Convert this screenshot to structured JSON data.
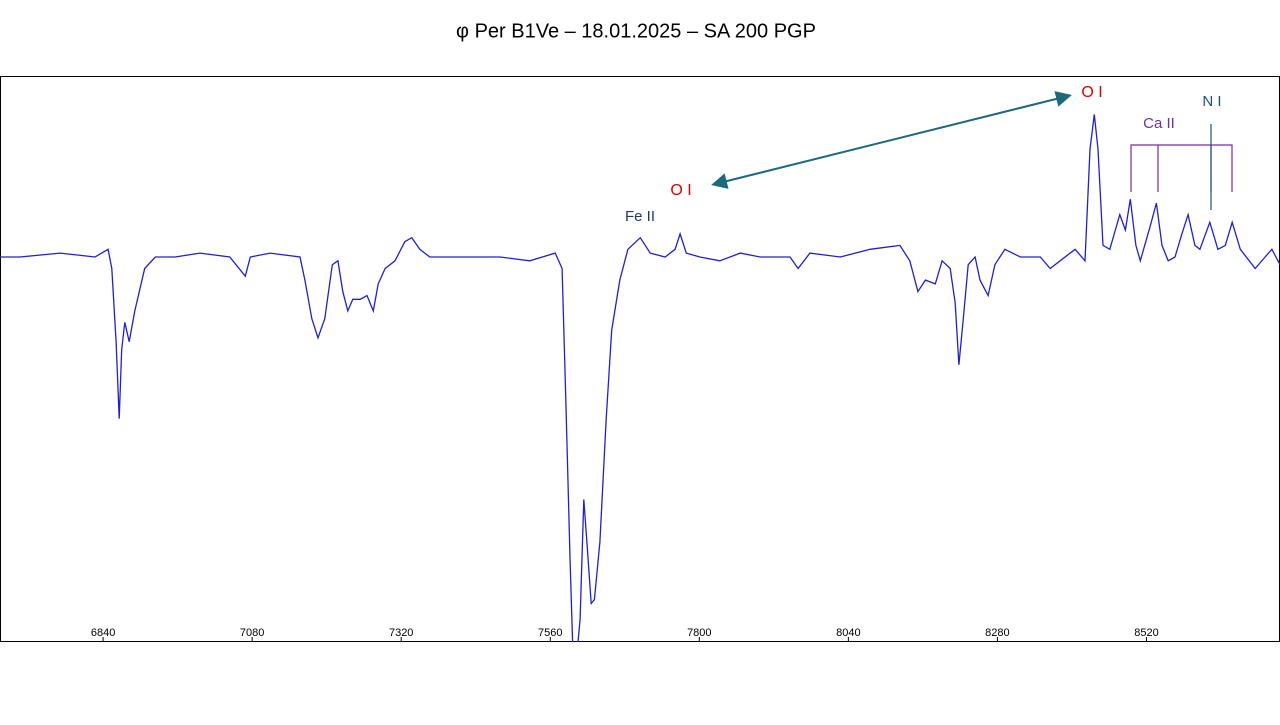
{
  "chart_data": {
    "type": "line",
    "title": "φ Per  B1Ve – 18.01.2025 – SA 200 PGP",
    "xlim": [
      6674,
      8735
    ],
    "ylim": [
      0,
      1.47
    ],
    "xticks": [
      6840,
      7080,
      7320,
      7560,
      7800,
      8040,
      8280,
      8520
    ],
    "annotations": [
      "O I",
      "O I",
      "Fe II",
      "Ca II",
      "N I"
    ],
    "series": [
      {
        "color": "#2020d0",
        "x": [
          6674,
          6706,
          6771,
          6827,
          6848,
          6854,
          6861,
          6866,
          6870,
          6875,
          6882,
          6891,
          6907,
          6924,
          6956,
          6996,
          7044,
          7069,
          7077,
          7109,
          7157,
          7165,
          7176,
          7186,
          7197,
          7209,
          7218,
          7226,
          7234,
          7242,
          7254,
          7265,
          7275,
          7283,
          7294,
          7310,
          7326,
          7337,
          7350,
          7366,
          7431,
          7479,
          7527,
          7568,
          7579,
          7585,
          7592,
          7597,
          7602,
          7608,
          7614,
          7619,
          7626,
          7631,
          7640,
          7650,
          7659,
          7672,
          7685,
          7705,
          7721,
          7745,
          7761,
          7769,
          7779,
          7801,
          7833,
          7866,
          7898,
          7946,
          7959,
          7978,
          8027,
          8075,
          8123,
          8139,
          8152,
          8164,
          8180,
          8191,
          8204,
          8212,
          8218,
          8225,
          8233,
          8244,
          8252,
          8265,
          8276,
          8292,
          8317,
          8349,
          8365,
          8381,
          8405,
          8421,
          8429,
          8436,
          8442,
          8450,
          8461,
          8477,
          8486,
          8494,
          8503,
          8510,
          8526,
          8536,
          8545,
          8555,
          8566,
          8577,
          8587,
          8598,
          8606,
          8622,
          8635,
          8647,
          8658,
          8671,
          8695,
          8711,
          8722,
          8735
        ],
        "values": [
          1.0,
          1.0,
          1.01,
          1.0,
          1.02,
          0.97,
          0.78,
          0.58,
          0.76,
          0.83,
          0.78,
          0.86,
          0.97,
          1.0,
          1.0,
          1.01,
          1.0,
          0.95,
          1.0,
          1.01,
          1.0,
          0.94,
          0.84,
          0.79,
          0.84,
          0.98,
          0.99,
          0.91,
          0.86,
          0.89,
          0.89,
          0.9,
          0.86,
          0.93,
          0.97,
          0.99,
          1.04,
          1.05,
          1.02,
          1.0,
          1.0,
          1.0,
          0.99,
          1.01,
          0.97,
          0.63,
          0.21,
          -0.05,
          -0.05,
          0.06,
          0.37,
          0.26,
          0.1,
          0.11,
          0.26,
          0.58,
          0.81,
          0.94,
          1.02,
          1.05,
          1.01,
          1.0,
          1.02,
          1.06,
          1.01,
          1.0,
          0.99,
          1.01,
          1.0,
          1.0,
          0.97,
          1.01,
          1.0,
          1.02,
          1.03,
          0.99,
          0.91,
          0.94,
          0.93,
          0.99,
          0.97,
          0.88,
          0.72,
          0.84,
          0.98,
          1.0,
          0.94,
          0.9,
          0.98,
          1.02,
          1.0,
          1.0,
          0.97,
          0.99,
          1.02,
          0.99,
          1.28,
          1.37,
          1.28,
          1.03,
          1.02,
          1.11,
          1.07,
          1.15,
          1.03,
          0.99,
          1.08,
          1.14,
          1.03,
          0.99,
          1.0,
          1.06,
          1.11,
          1.03,
          1.02,
          1.09,
          1.02,
          1.03,
          1.09,
          1.02,
          0.97,
          1.0,
          1.02,
          0.98
        ]
      }
    ]
  }
}
